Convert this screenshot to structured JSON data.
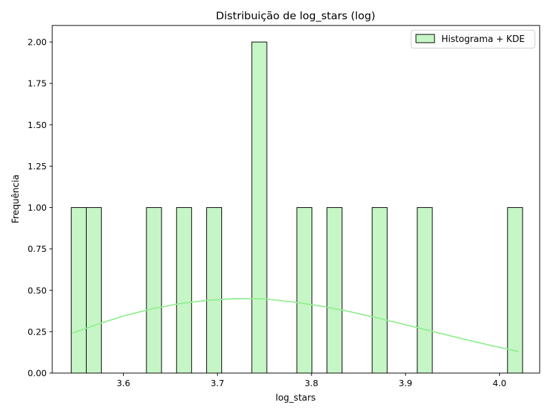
{
  "chart_data": {
    "type": "bar",
    "title": "Distribuição de log_stars (log)",
    "xlabel": "log_stars",
    "ylabel": "Frequência",
    "xlim": [
      3.5243,
      4.0427
    ],
    "ylim": [
      0,
      2.1
    ],
    "grid": false,
    "legend_position": "top-right",
    "x_ticks": [
      {
        "value": 3.6,
        "label": "3.6"
      },
      {
        "value": 3.7,
        "label": "3.7"
      },
      {
        "value": 3.8,
        "label": "3.8"
      },
      {
        "value": 3.9,
        "label": "3.9"
      },
      {
        "value": 4.0,
        "label": "4.0"
      }
    ],
    "y_ticks": [
      {
        "value": 0.0,
        "label": "0.00"
      },
      {
        "value": 0.25,
        "label": "0.25"
      },
      {
        "value": 0.5,
        "label": "0.50"
      },
      {
        "value": 0.75,
        "label": "0.75"
      },
      {
        "value": 1.0,
        "label": "1.00"
      },
      {
        "value": 1.25,
        "label": "1.25"
      },
      {
        "value": 1.5,
        "label": "1.50"
      },
      {
        "value": 1.75,
        "label": "1.75"
      },
      {
        "value": 2.0,
        "label": "2.00"
      }
    ],
    "bins": [
      {
        "start": 3.5445,
        "end": 3.5605,
        "count": 1
      },
      {
        "start": 3.5605,
        "end": 3.5765,
        "count": 1
      },
      {
        "start": 3.6245,
        "end": 3.6405,
        "count": 1
      },
      {
        "start": 3.6565,
        "end": 3.6725,
        "count": 1
      },
      {
        "start": 3.6885,
        "end": 3.7045,
        "count": 1
      },
      {
        "start": 3.7365,
        "end": 3.7525,
        "count": 2
      },
      {
        "start": 3.7845,
        "end": 3.8005,
        "count": 1
      },
      {
        "start": 3.8165,
        "end": 3.8325,
        "count": 1
      },
      {
        "start": 3.8645,
        "end": 3.8805,
        "count": 1
      },
      {
        "start": 3.9125,
        "end": 3.9285,
        "count": 1
      },
      {
        "start": 4.0085,
        "end": 4.0245,
        "count": 1
      }
    ],
    "kde": {
      "x": [
        3.545,
        3.57,
        3.6,
        3.63,
        3.66,
        3.69,
        3.72,
        3.75,
        3.78,
        3.81,
        3.84,
        3.87,
        3.9,
        3.93,
        3.96,
        3.99,
        4.02
      ],
      "y": [
        0.24,
        0.29,
        0.345,
        0.388,
        0.42,
        0.44,
        0.45,
        0.448,
        0.43,
        0.405,
        0.372,
        0.333,
        0.292,
        0.25,
        0.208,
        0.168,
        0.13
      ]
    },
    "series": [
      {
        "name": "Histograma + KDE",
        "bar_fill": "#c6f5c6",
        "bar_edge": "#000000",
        "line_color": "#90ee90"
      }
    ],
    "legend": [
      {
        "label": "Histograma + KDE"
      }
    ]
  }
}
